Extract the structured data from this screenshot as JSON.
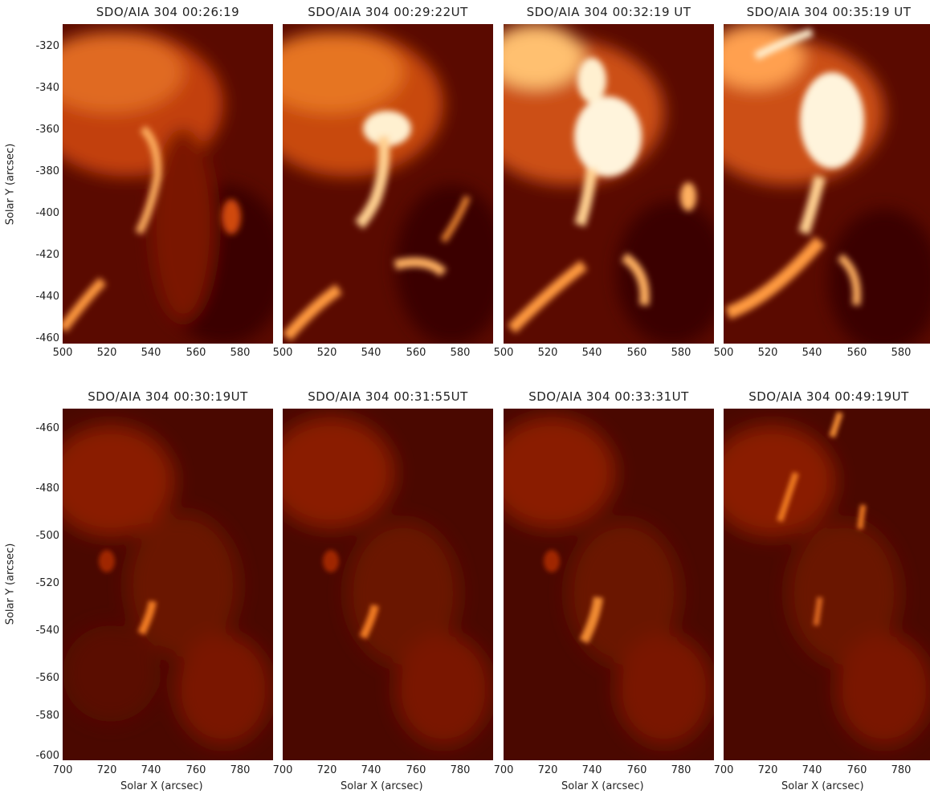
{
  "colors": {
    "background": "#3a0500",
    "dark": "#5a0a00",
    "mid": "#b22a00",
    "bright": "#f07a20",
    "hot": "#fff0d0"
  },
  "top_row": {
    "titles": [
      "SDO/AIA 304 00:26:19",
      "SDO/AIA 304 00:29:22UT",
      "SDO/AIA 304 00:32:19 UT",
      "SDO/AIA 304 00:35:19 UT"
    ],
    "ylabel": "Solar Y (arcsec)",
    "yticks": [
      "-320",
      "-340",
      "-360",
      "-380",
      "-400",
      "-420",
      "-440",
      "-460"
    ],
    "xticks": [
      "500",
      "520",
      "540",
      "560",
      "580"
    ]
  },
  "bottom_row": {
    "titles": [
      "SDO/AIA 304 00:30:19UT",
      "SDO/AIA 304 00:31:55UT",
      "SDO/AIA 304 00:33:31UT",
      "SDO/AIA 304 00:49:19UT"
    ],
    "ylabel": "Solar Y (arcsec)",
    "xlabel": "Solar X (arcsec)",
    "yticks": [
      "-460",
      "-480",
      "-500",
      "-520",
      "-540",
      "-560",
      "-580",
      "-600"
    ],
    "xticks": [
      "700",
      "720",
      "740",
      "760",
      "780"
    ]
  }
}
